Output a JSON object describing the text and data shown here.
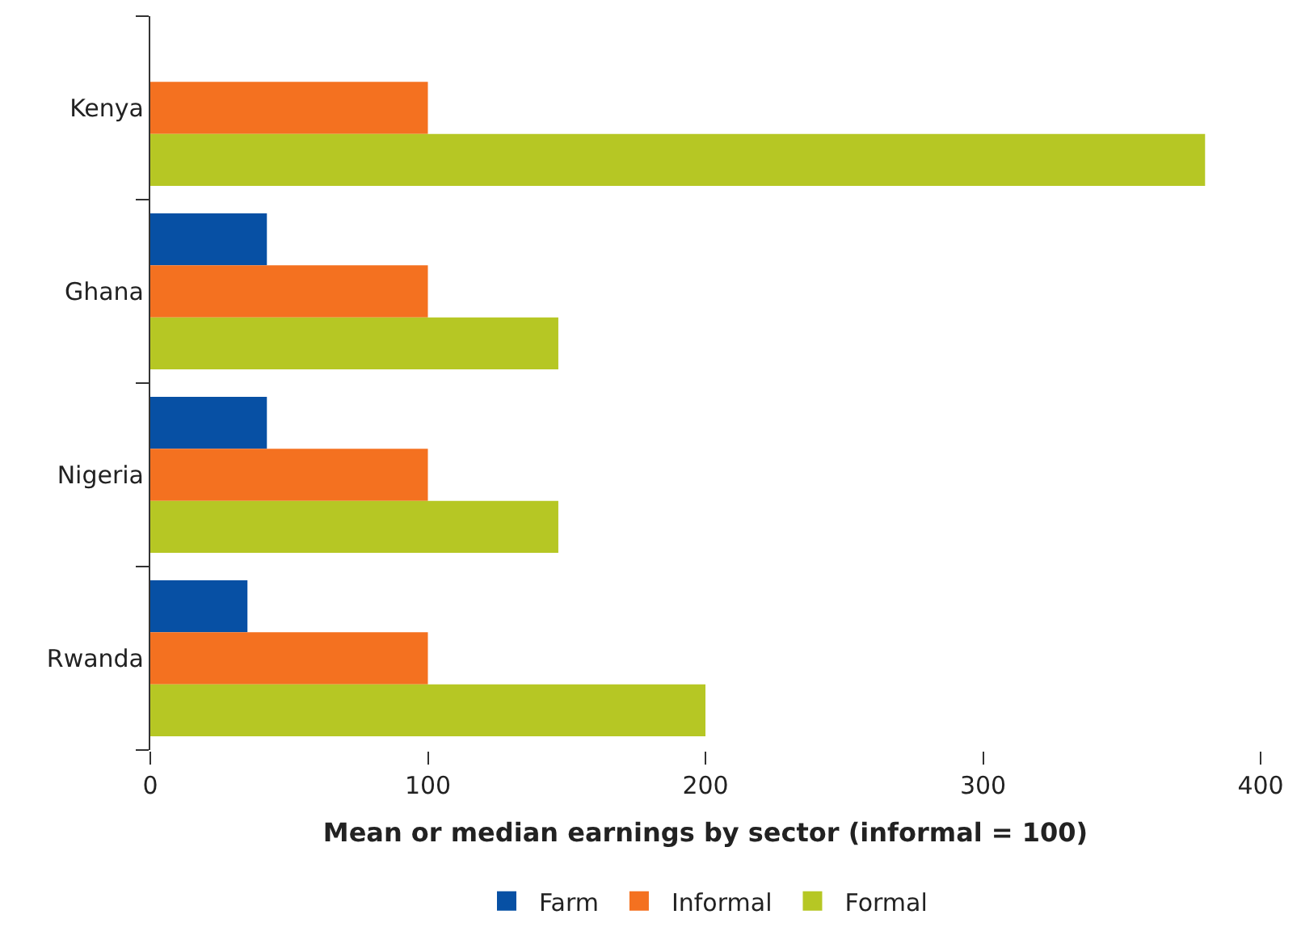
{
  "chart_data": {
    "type": "bar",
    "orientation": "horizontal",
    "xlabel": "Mean or median earnings by sector (informal = 100)",
    "categories": [
      "Kenya",
      "Ghana",
      "Nigeria",
      "Rwanda"
    ],
    "series": [
      {
        "name": "Farm",
        "color": "#0750a4",
        "values": [
          null,
          42,
          42,
          35
        ]
      },
      {
        "name": "Informal",
        "color": "#f47120",
        "values": [
          100,
          100,
          100,
          100
        ]
      },
      {
        "name": "Formal",
        "color": "#b6c724",
        "values": [
          380,
          147,
          147,
          200
        ]
      }
    ],
    "xlim": [
      0,
      400
    ],
    "xticks": [
      0,
      100,
      200,
      300,
      400
    ],
    "legend": "bottom"
  }
}
